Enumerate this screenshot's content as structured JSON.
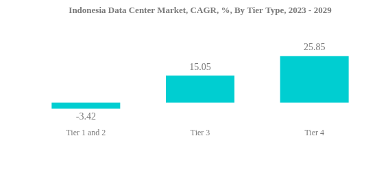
{
  "chart_data": {
    "type": "bar",
    "title": "Indonesia Data Center Market, CAGR, %, By Tier Type, 2023 - 2029",
    "categories": [
      "Tier 1 and 2",
      "Tier 3",
      "Tier 4"
    ],
    "values": [
      -3.42,
      15.05,
      25.85
    ],
    "color": "#00ced1",
    "data_labels": true,
    "tick_labels": "x",
    "grid": false
  }
}
